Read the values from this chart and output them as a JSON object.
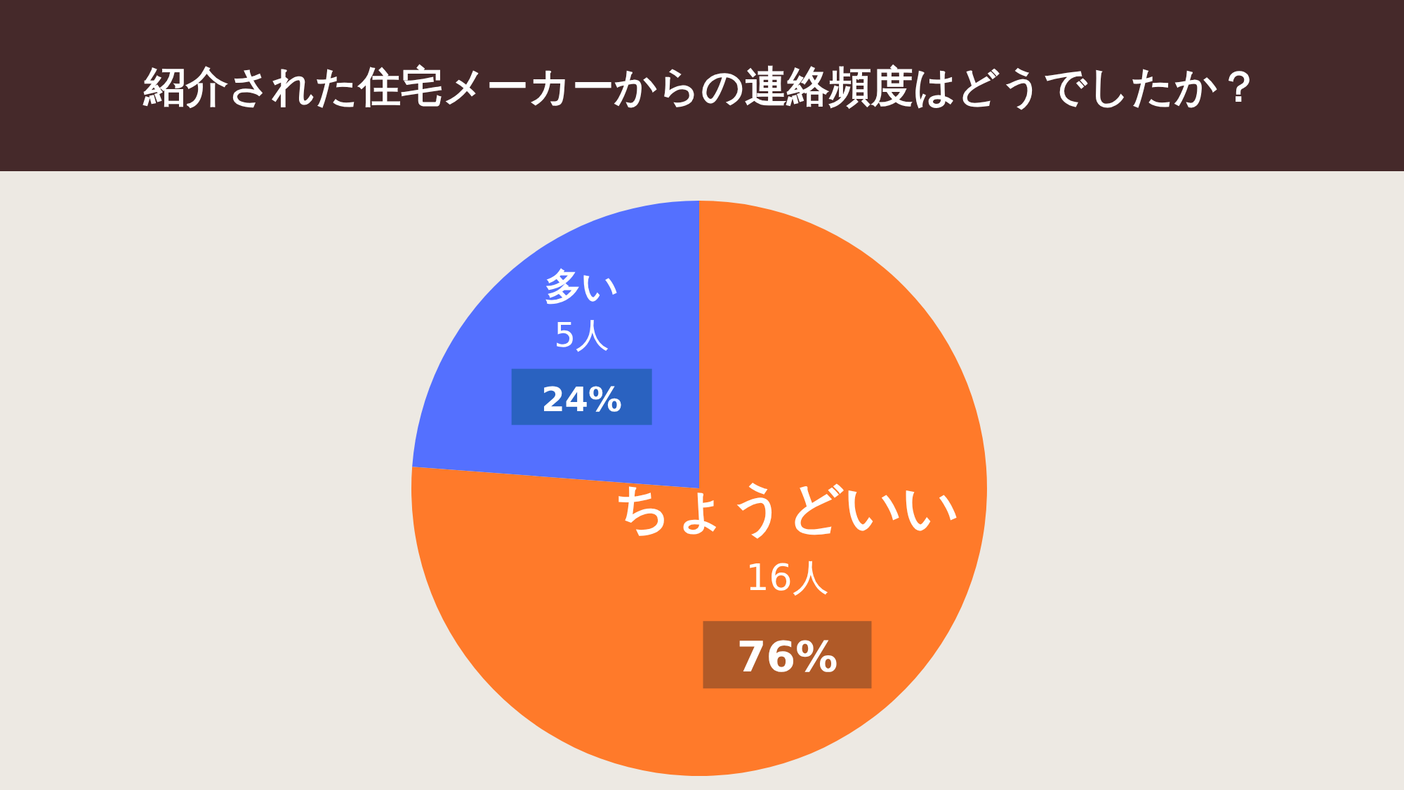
{
  "chart_data": {
    "type": "pie",
    "title": "紹介された住宅メーカーからの連絡頻度はどうでしたか？",
    "categories": [
      "ちょうどいい",
      "多い"
    ],
    "values": [
      16,
      5
    ],
    "colors": [
      "#ff7a2a",
      "#5470ff"
    ],
    "value_labels": [
      "16人",
      "5人"
    ],
    "annotations": [
      "76%",
      "24%"
    ]
  }
}
